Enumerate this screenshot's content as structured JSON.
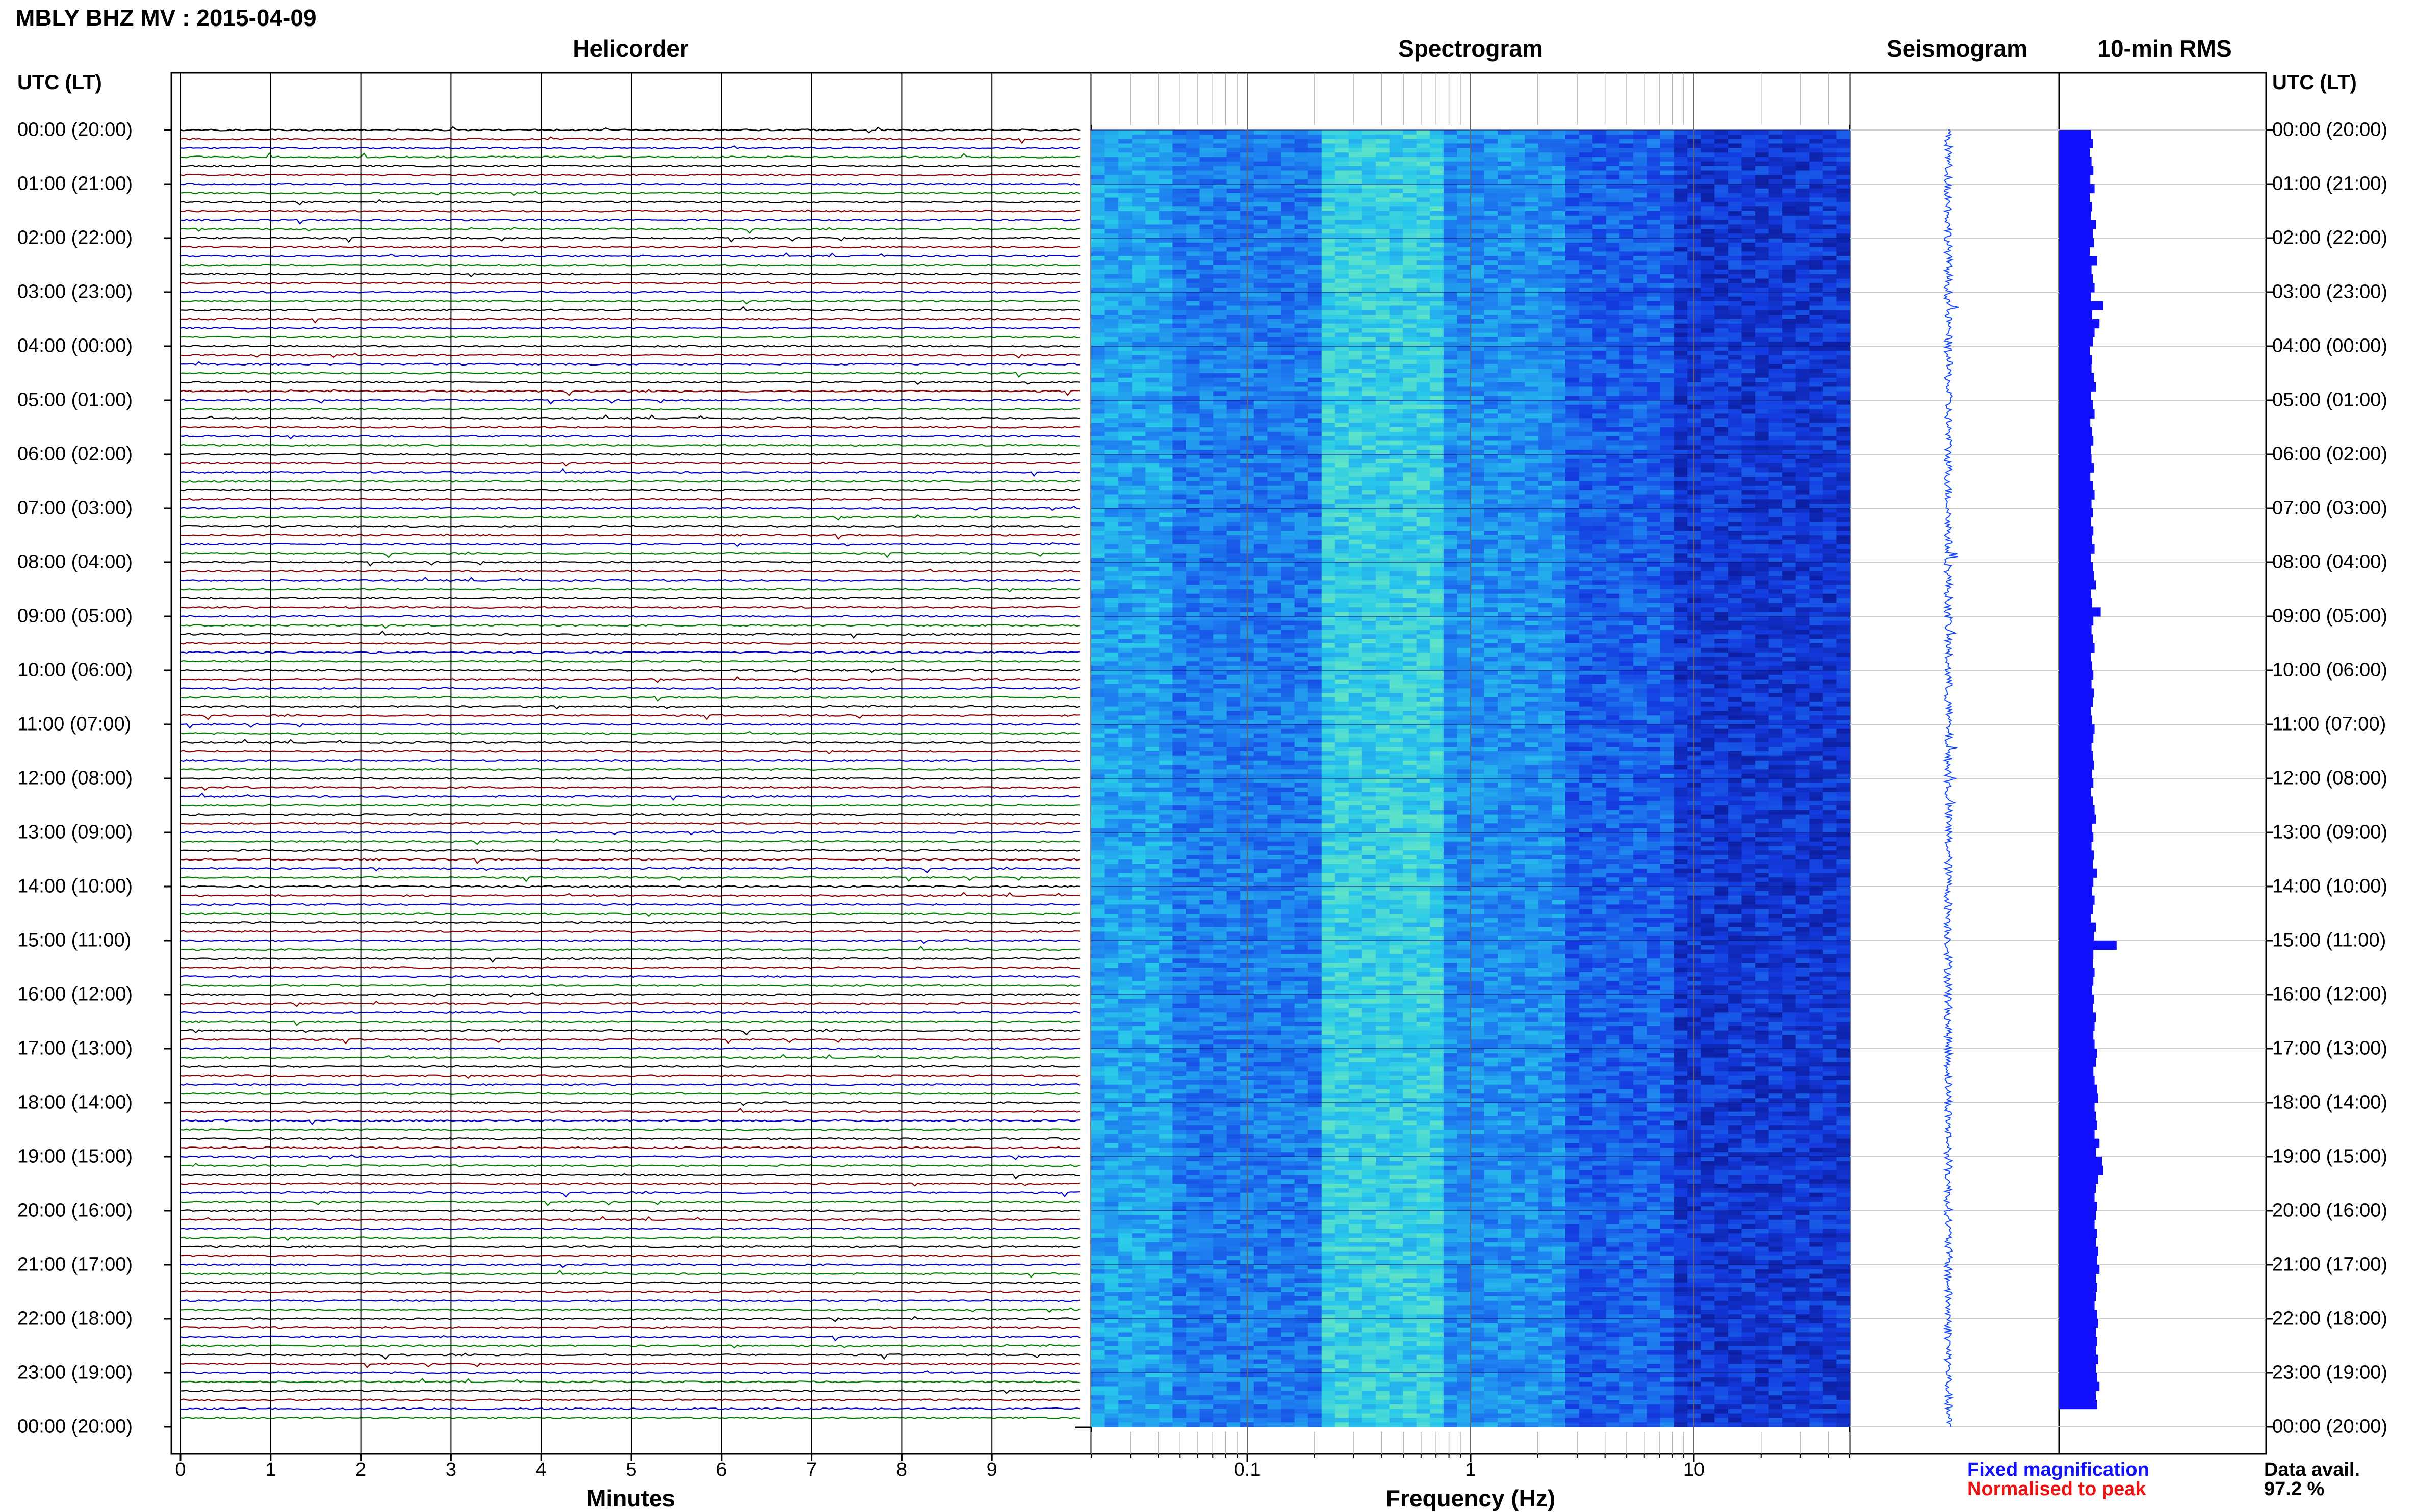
{
  "title": "MBLY BHZ MV : 2015-04-09",
  "colors": {
    "trace_cycle": [
      "#000000",
      "#8b0000",
      "#0000c8",
      "#008000"
    ],
    "rms_bar": "#1010ff",
    "seismogram": "#1a4cff",
    "legend_fixed": "#1010ff",
    "legend_norm": "#ee1111"
  },
  "time_axis": {
    "header": "UTC (LT)",
    "labels": [
      "00:00 (20:00)",
      "01:00 (21:00)",
      "02:00 (22:00)",
      "03:00 (23:00)",
      "04:00 (00:00)",
      "05:00 (01:00)",
      "06:00 (02:00)",
      "07:00 (03:00)",
      "08:00 (04:00)",
      "09:00 (05:00)",
      "10:00 (06:00)",
      "11:00 (07:00)",
      "12:00 (08:00)",
      "13:00 (09:00)",
      "14:00 (10:00)",
      "15:00 (11:00)",
      "16:00 (12:00)",
      "17:00 (13:00)",
      "18:00 (14:00)",
      "19:00 (15:00)",
      "20:00 (16:00)",
      "21:00 (17:00)",
      "22:00 (18:00)",
      "23:00 (19:00)",
      "00:00 (20:00)"
    ]
  },
  "chart_data": [
    {
      "type": "line",
      "title": "Helicorder",
      "xlabel": "Minutes",
      "x_ticks": [
        0,
        1,
        2,
        3,
        4,
        5,
        6,
        7,
        8,
        9
      ],
      "xlim": [
        0,
        10
      ],
      "traces_per_hour": 6,
      "hours": 24
    },
    {
      "type": "heatmap",
      "title": "Spectrogram",
      "xlabel": "Frequency (Hz)",
      "x_scale": "log",
      "x_ticks": [
        0.1,
        1,
        10
      ],
      "x_tick_labels": [
        "0.1",
        "1",
        "10"
      ],
      "xlim": [
        0.02,
        50
      ]
    },
    {
      "type": "line",
      "title": "Seismogram"
    },
    {
      "type": "bar",
      "title": "10-min RMS",
      "orientation": "horizontal",
      "values": [
        0.52,
        0.55,
        0.5,
        0.53,
        0.56,
        0.51,
        0.58,
        0.5,
        0.54,
        0.52,
        0.6,
        0.55,
        0.57,
        0.5,
        0.62,
        0.53,
        0.55,
        0.58,
        0.52,
        0.72,
        0.54,
        0.66,
        0.58,
        0.55,
        0.5,
        0.54,
        0.53,
        0.57,
        0.6,
        0.52,
        0.55,
        0.58,
        0.51,
        0.54,
        0.56,
        0.52,
        0.53,
        0.57,
        0.51,
        0.55,
        0.58,
        0.53,
        0.55,
        0.52,
        0.56,
        0.54,
        0.58,
        0.52,
        0.55,
        0.57,
        0.6,
        0.52,
        0.54,
        0.68,
        0.56,
        0.53,
        0.55,
        0.58,
        0.52,
        0.54,
        0.56,
        0.53,
        0.57,
        0.55,
        0.52,
        0.54,
        0.58,
        0.56,
        0.53,
        0.55,
        0.57,
        0.54,
        0.56,
        0.52,
        0.55,
        0.58,
        0.6,
        0.54,
        0.56,
        0.53,
        0.57,
        0.55,
        0.62,
        0.56,
        0.54,
        0.58,
        0.55,
        0.52,
        0.6,
        0.57,
        0.94,
        0.56,
        0.55,
        0.58,
        0.56,
        0.54,
        0.57,
        0.55,
        0.6,
        0.58,
        0.56,
        0.58,
        0.62,
        0.6,
        0.56,
        0.58,
        0.62,
        0.64,
        0.58,
        0.6,
        0.62,
        0.58,
        0.66,
        0.6,
        0.7,
        0.72,
        0.64,
        0.6,
        0.58,
        0.62,
        0.6,
        0.58,
        0.62,
        0.6,
        0.64,
        0.62,
        0.66,
        0.6,
        0.62,
        0.6,
        0.58,
        0.62,
        0.64,
        0.6,
        0.62,
        0.6,
        0.64,
        0.6,
        0.62,
        0.66,
        0.6,
        0.62
      ]
    }
  ],
  "legend": {
    "fixed": "Fixed magnification",
    "normalised": "Normalised to peak"
  },
  "data_availability": {
    "label": "Data avail.",
    "value": "97.2 %"
  }
}
